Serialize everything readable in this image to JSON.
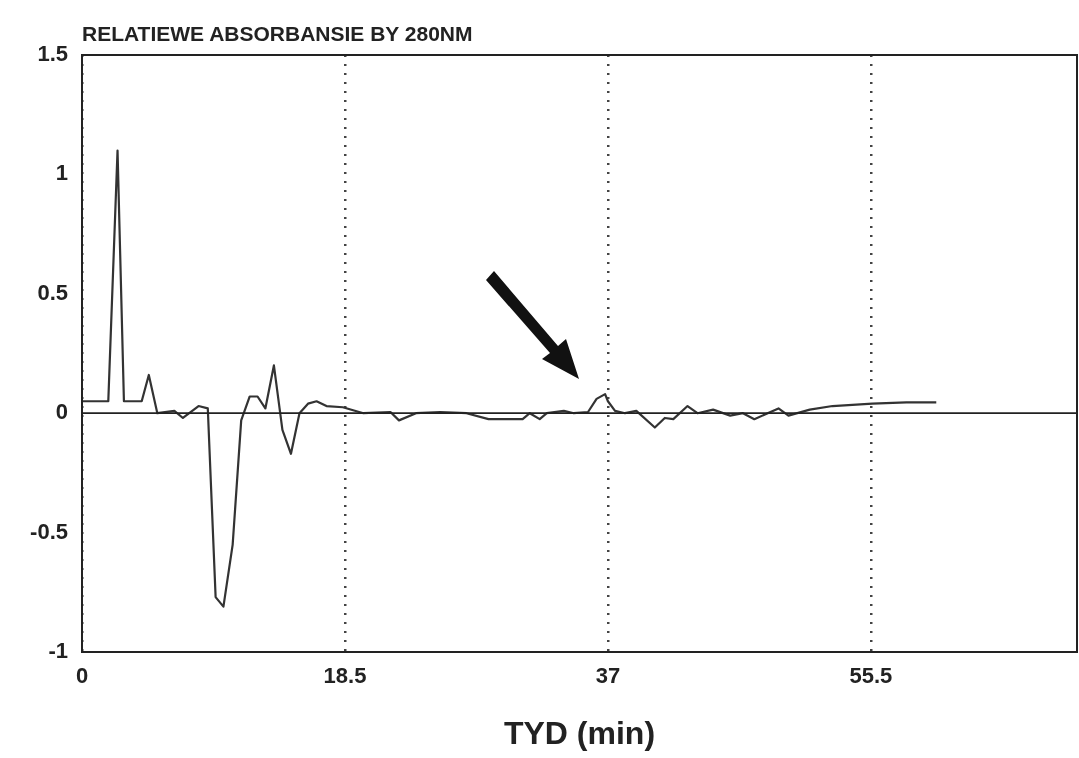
{
  "chart_data": {
    "type": "line",
    "title": "RELATIEWE ABSORBANSIE BY 280NM",
    "xlabel": "TYD (min)",
    "x": [
      0,
      1.85,
      2.5,
      2.95,
      4.2,
      4.7,
      5.3,
      6.5,
      7.1,
      8.2,
      8.85,
      9.4,
      9.95,
      10.6,
      11.2,
      11.8,
      12.35,
      12.9,
      13.5,
      14.1,
      14.7,
      15.3,
      15.9,
      16.5,
      17.2,
      18.35,
      19.8,
      21.7,
      22.3,
      23.5,
      25.2,
      27.05,
      28.6,
      31.0,
      31.5,
      32.2,
      32.7,
      33.9,
      34.6,
      35.6,
      36.2,
      36.8,
      37.0,
      37.5,
      38.2,
      39.0,
      40.3,
      41.0,
      41.6,
      42.6,
      43.3,
      44.4,
      45.6,
      46.5,
      47.3,
      49.0,
      49.7,
      51.2,
      52.8,
      55.6,
      58.0,
      60.1
    ],
    "series": [
      {
        "color": "#333333",
        "values": [
          0.05,
          0.05,
          1.1,
          0.05,
          0.05,
          0.16,
          0.0,
          0.01,
          -0.02,
          0.03,
          0.02,
          -0.77,
          -0.81,
          -0.55,
          -0.03,
          0.07,
          0.07,
          0.02,
          0.2,
          -0.07,
          -0.17,
          0.0,
          0.04,
          0.05,
          0.03,
          0.025,
          0.0,
          0.005,
          -0.03,
          0.0,
          0.005,
          0.0,
          -0.025,
          -0.025,
          0.0,
          -0.025,
          0.0,
          0.01,
          0.0,
          0.005,
          0.06,
          0.08,
          0.05,
          0.01,
          0.0,
          0.01,
          -0.06,
          -0.02,
          -0.025,
          0.03,
          0.0,
          0.015,
          -0.01,
          0.0,
          -0.025,
          0.02,
          -0.01,
          0.015,
          0.03,
          0.04,
          0.045,
          0.045
        ]
      }
    ],
    "xlim": [
      0,
      70
    ],
    "xticks": [
      0,
      18.5,
      37,
      55.5
    ],
    "ylim": [
      -1,
      1.5
    ],
    "yticks": [
      -1,
      -0.5,
      0,
      0.5,
      1,
      1.5
    ],
    "ref_lines": [
      {
        "axis": "y",
        "value": 0
      }
    ],
    "grid": "x",
    "legend": false,
    "marker": "none",
    "line_style": "solid"
  }
}
